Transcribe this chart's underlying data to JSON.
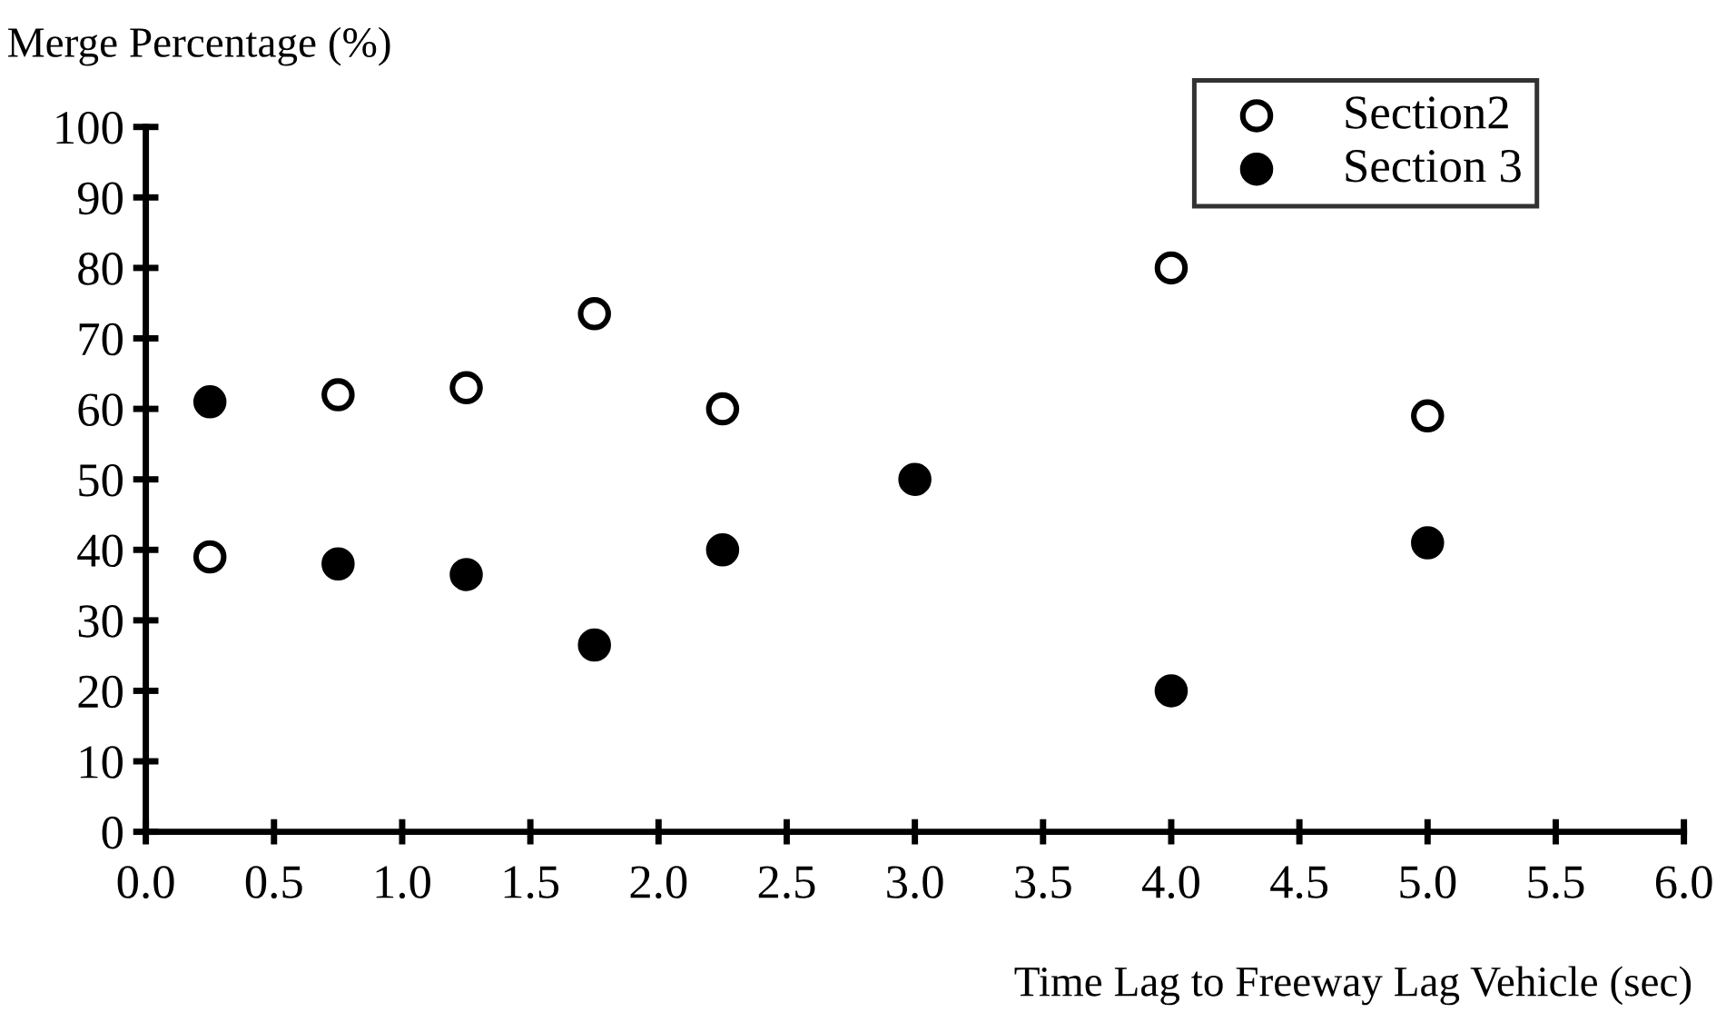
{
  "chart_data": {
    "type": "scatter",
    "xlabel": "Time Lag to Freeway Lag Vehicle (sec)",
    "ylabel": "Merge Percentage (%)",
    "xlim": [
      0,
      6
    ],
    "xticks": [
      {
        "value": 0,
        "label": "0.0"
      },
      0.5,
      {
        "value": 1,
        "label": "1.0"
      },
      1.5,
      {
        "value": 2,
        "label": "2.0"
      },
      2.5,
      {
        "value": 3,
        "label": "3.0"
      },
      3.5,
      {
        "value": 4,
        "label": "4.0"
      },
      4.5,
      {
        "value": 5,
        "label": "5.0"
      },
      5.5,
      {
        "value": 6,
        "label": "6.0"
      }
    ],
    "ylim": [
      0,
      100
    ],
    "yticks": [
      0,
      10,
      20,
      30,
      40,
      50,
      60,
      70,
      80,
      90,
      100
    ],
    "grid": false,
    "legend": "top right",
    "marker": "circle",
    "series": [
      {
        "name": "Section2",
        "color": "#ffffff",
        "x": [
          0.25,
          0.75,
          1.25,
          1.75,
          2.25,
          4.0,
          5.0
        ],
        "values": [
          39,
          62,
          63,
          73.5,
          60,
          80,
          59
        ]
      },
      {
        "name": "Section 3",
        "color": "#000000",
        "x": [
          0.25,
          0.75,
          1.25,
          1.75,
          2.25,
          3.0,
          4.0,
          5.0
        ],
        "values": [
          61,
          38,
          36.5,
          26.5,
          40,
          50,
          20,
          41
        ]
      }
    ]
  }
}
